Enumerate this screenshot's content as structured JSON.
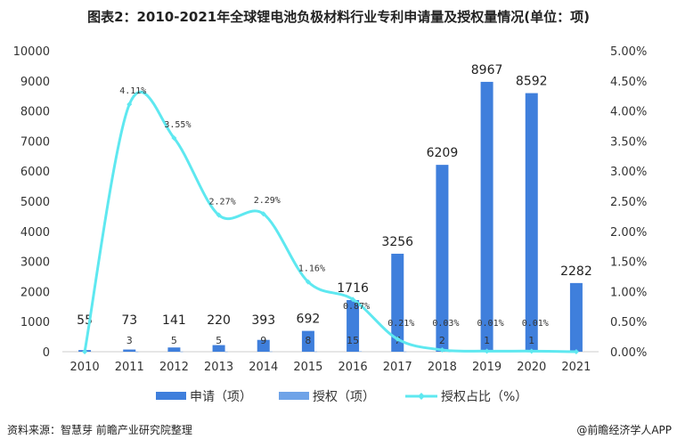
{
  "title": "图表2：2010-2021年全球锂电池负极材料行业专利申请量及授权量情况(单位：项)",
  "source": "资料来源：智慧芽 前瞻产业研究院整理",
  "credit": "@前瞻经济学人APP",
  "chart_data": {
    "type": "bar",
    "categories": [
      "2010",
      "2011",
      "2012",
      "2013",
      "2014",
      "2015",
      "2016",
      "2017",
      "2018",
      "2019",
      "2020",
      "2021"
    ],
    "series": [
      {
        "name": "申请（项）",
        "type": "bar",
        "axis": "left",
        "color": "#3f7fdc",
        "values": [
          55,
          73,
          141,
          220,
          393,
          692,
          1716,
          3256,
          6209,
          8967,
          8592,
          2282
        ]
      },
      {
        "name": "授权（项）",
        "type": "bar",
        "axis": "left",
        "color": "#6fa3e8",
        "values": [
          0,
          3,
          5,
          5,
          9,
          8,
          15,
          7,
          2,
          1,
          1,
          0
        ]
      },
      {
        "name": "授权占比（%）",
        "type": "line",
        "axis": "right",
        "color": "#5ee8f0",
        "values": [
          0,
          4.11,
          3.55,
          2.27,
          2.29,
          1.16,
          0.87,
          0.21,
          0.03,
          0.01,
          0.01,
          0
        ]
      }
    ],
    "grant_labels": [
      "",
      "3",
      "5",
      "5",
      "9",
      "8",
      "15",
      "7",
      "2",
      "1",
      "1",
      ""
    ],
    "pct_labels": [
      "",
      "4.11%",
      "3.55%",
      "2.27%",
      "2.29%",
      "1.16%",
      "0.87%",
      "0.21%",
      "0.03%",
      "0.01%",
      "0.01%",
      ""
    ],
    "ylim": [
      0,
      10000
    ],
    "yticks": [
      "0",
      "1000",
      "2000",
      "3000",
      "4000",
      "5000",
      "6000",
      "7000",
      "8000",
      "9000",
      "10000"
    ],
    "y2lim": [
      0,
      5
    ],
    "y2ticks": [
      "0.00%",
      "0.50%",
      "1.00%",
      "1.50%",
      "2.00%",
      "2.50%",
      "3.00%",
      "3.50%",
      "4.00%",
      "4.50%",
      "5.00%"
    ],
    "grid": false,
    "legend": "bottom"
  }
}
